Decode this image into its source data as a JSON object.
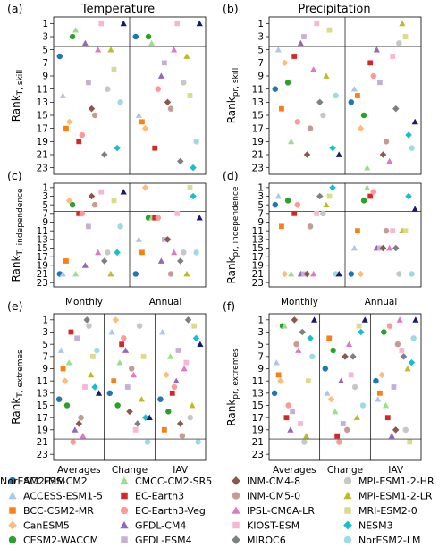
{
  "chart_data": {
    "type": "scatter",
    "y_range": [
      0,
      24
    ],
    "y_inverted": true,
    "y_ticks": [
      1,
      3,
      5,
      7,
      9,
      11,
      13,
      15,
      17,
      19,
      21,
      23
    ],
    "models": [
      {
        "name": "ACCESS-CM2",
        "marker": "circle",
        "color": "#1f77b4"
      },
      {
        "name": "ACCESS-ESM1-5",
        "marker": "triangle",
        "color": "#aec7e8"
      },
      {
        "name": "BCC-CSM2-MR",
        "marker": "square",
        "color": "#ff7f0e"
      },
      {
        "name": "CanESM5",
        "marker": "diamond",
        "color": "#ffbb78"
      },
      {
        "name": "CESM2-WACCM",
        "marker": "circle",
        "color": "#2ca02c"
      },
      {
        "name": "CMCC-CM2-SR5",
        "marker": "triangle",
        "color": "#98df8a"
      },
      {
        "name": "EC-Earth3",
        "marker": "square",
        "color": "#d62728"
      },
      {
        "name": "EC-Earth3-Veg",
        "marker": "circle",
        "color": "#ff9896"
      },
      {
        "name": "GFDL-CM4",
        "marker": "triangle",
        "color": "#9467bd"
      },
      {
        "name": "GFDL-ESM4",
        "marker": "square",
        "color": "#c5b0d5"
      },
      {
        "name": "INM-CM4-8",
        "marker": "diamond",
        "color": "#8c564b"
      },
      {
        "name": "INM-CM5-0",
        "marker": "circle",
        "color": "#c49c94"
      },
      {
        "name": "IPSL-CM6A-LR",
        "marker": "triangle",
        "color": "#e377c2"
      },
      {
        "name": "KIOST-ESM",
        "marker": "square",
        "color": "#f7b6d2"
      },
      {
        "name": "MIROC6",
        "marker": "diamond",
        "color": "#7f7f7f"
      },
      {
        "name": "MPI-ESM1-2-HR",
        "marker": "circle",
        "color": "#c7c7c7"
      },
      {
        "name": "MPI-ESM1-2-LR",
        "marker": "triangle",
        "color": "#bcbd22"
      },
      {
        "name": "MRI-ESM2-0",
        "marker": "square",
        "color": "#dbdb8d"
      },
      {
        "name": "NESM3",
        "marker": "diamond",
        "color": "#17becf"
      },
      {
        "name": "NorESM2-LM",
        "marker": "circle",
        "color": "#9edae5"
      },
      {
        "name": "NorESM2-MM",
        "marker": "triangle",
        "color": "#191970"
      }
    ],
    "column_titles": [
      "Temperature",
      "Precipitation"
    ],
    "panels": [
      {
        "label": "(a)",
        "ylabel_main": "Rank",
        "ylabel_sub": "T, skill",
        "groups": [
          "",
          ""
        ],
        "separator_x": 2,
        "threshold_y": 4.5,
        "ranks": [
          [
            6,
            12,
            17,
            16,
            3,
            2,
            19,
            18,
            4,
            10,
            14,
            15,
            5,
            1,
            21,
            11,
            5,
            8,
            20,
            13,
            1
          ],
          [
            3,
            15,
            16,
            17,
            3,
            4,
            20,
            11,
            9,
            7,
            13,
            14,
            5,
            1,
            22,
            10,
            6,
            12,
            23,
            19,
            1
          ]
        ]
      },
      {
        "label": "(b)",
        "ylabel_main": "Rank",
        "ylabel_sub": "pr, skill",
        "groups": [
          "",
          ""
        ],
        "separator_x": 2,
        "threshold_y": 4.5,
        "ranks": [
          [
            11,
            5,
            14,
            7,
            10,
            19,
            6,
            16,
            4,
            3,
            21,
            17,
            8,
            1,
            13,
            15,
            9,
            2,
            20,
            12,
            21
          ],
          [
            13,
            11,
            12,
            17,
            15,
            23,
            7,
            9,
            5,
            10,
            21,
            19,
            22,
            6,
            14,
            4,
            1,
            3,
            18,
            20,
            16
          ]
        ]
      },
      {
        "label": "(c)",
        "ylabel_main": "Rank",
        "ylabel_sub": "T, independence",
        "groups": [
          "",
          ""
        ],
        "separator_x": 2,
        "threshold_y": 6.5,
        "ranks": [
          [
            21,
            21,
            18,
            4,
            5,
            21,
            7,
            7,
            19,
            10,
            3,
            5,
            16,
            2,
            18,
            16,
            21,
            4,
            16,
            10,
            2
          ],
          [
            21,
            13,
            16,
            1,
            8,
            8,
            8,
            8,
            18,
            13,
            13,
            21,
            16,
            7,
            18,
            16,
            21,
            1,
            3,
            16,
            8
          ]
        ]
      },
      {
        "label": "(d)",
        "ylabel_main": "Rank",
        "ylabel_sub": "pr, independence",
        "groups": [
          "",
          ""
        ],
        "separator_x": 2,
        "threshold_y": 6.5,
        "ranks": [
          [
            5,
            3,
            10,
            21,
            4,
            21,
            7,
            5,
            21,
            21,
            21,
            10,
            21,
            7,
            3,
            7,
            5,
            3,
            1,
            21,
            21
          ],
          [
            21,
            15,
            11,
            21,
            4,
            1,
            3,
            2,
            15,
            15,
            15,
            11,
            15,
            11,
            15,
            21,
            11,
            11,
            3,
            21,
            6
          ]
        ]
      },
      {
        "label": "(e)",
        "ylabel_main": "Rank",
        "ylabel_sub": "T, extremes",
        "groups": [
          "Averages",
          "Change",
          "IAV"
        ],
        "threshold_y": 20.5,
        "ranks": [
          [
            14,
            6,
            9,
            11,
            15,
            8,
            3,
            21,
            19,
            4,
            18,
            17,
            20,
            12,
            1,
            2,
            10,
            7,
            12,
            6,
            13
          ],
          [
            13,
            3,
            11,
            1,
            15,
            8,
            5,
            4,
            6,
            12,
            16,
            9,
            10,
            19,
            18,
            2,
            14,
            7,
            17,
            21,
            17
          ],
          [
            14,
            3,
            19,
            10,
            16,
            7,
            13,
            12,
            11,
            6,
            18,
            20,
            9,
            8,
            1,
            17,
            15,
            2,
            4,
            21,
            5
          ]
        ]
      },
      {
        "label": "(f)",
        "ylabel_main": "Rank",
        "ylabel_sub": "pr, extremes",
        "groups": [
          "Averages",
          "Change",
          "IAV"
        ],
        "threshold_y": 20.5,
        "ranks": [
          [
            13,
            8,
            10,
            11,
            2,
            2,
            17,
            15,
            19,
            16,
            1,
            5,
            6,
            18,
            3,
            21,
            20,
            11,
            4,
            7,
            1
          ],
          [
            9,
            13,
            4,
            14,
            6,
            16,
            20,
            21,
            11,
            18,
            7,
            19,
            5,
            10,
            7,
            12,
            17,
            2,
            3,
            15,
            1
          ],
          [
            11,
            14,
            13,
            10,
            3,
            15,
            17,
            2,
            20,
            12,
            19,
            5,
            1,
            6,
            7,
            19,
            9,
            21,
            8,
            4,
            1
          ]
        ]
      }
    ],
    "groups_between_rows": [
      "Monthly",
      "Annual"
    ]
  }
}
